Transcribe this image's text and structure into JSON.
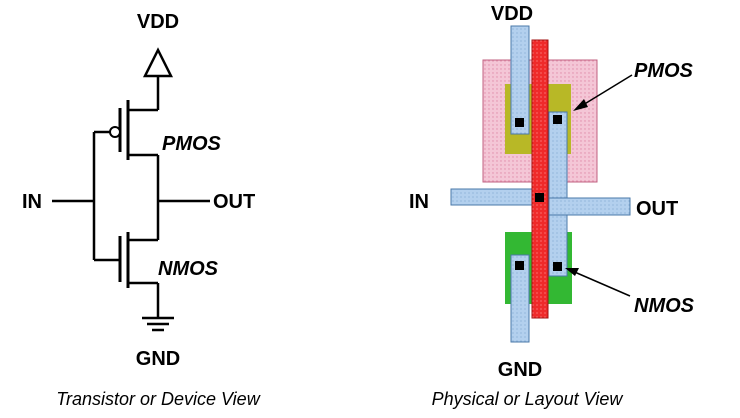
{
  "schematic": {
    "vdd_label": "VDD",
    "gnd_label": "GND",
    "in_label": "IN",
    "out_label": "OUT",
    "pmos_label": "PMOS",
    "nmos_label": "NMOS",
    "caption": "Transistor or Device View"
  },
  "layout_view": {
    "vdd_label": "VDD",
    "gnd_label": "GND",
    "in_label": "IN",
    "out_label": "OUT",
    "pmos_label": "PMOS",
    "nmos_label": "NMOS",
    "caption": "Physical or Layout View"
  },
  "colors": {
    "nwell": "#f4c6d6",
    "p_diffusion": "#b5b526",
    "n_diffusion": "#33b833",
    "poly": "#ef1f1f",
    "metal": "#a8c8e8",
    "contact": "#000000"
  }
}
